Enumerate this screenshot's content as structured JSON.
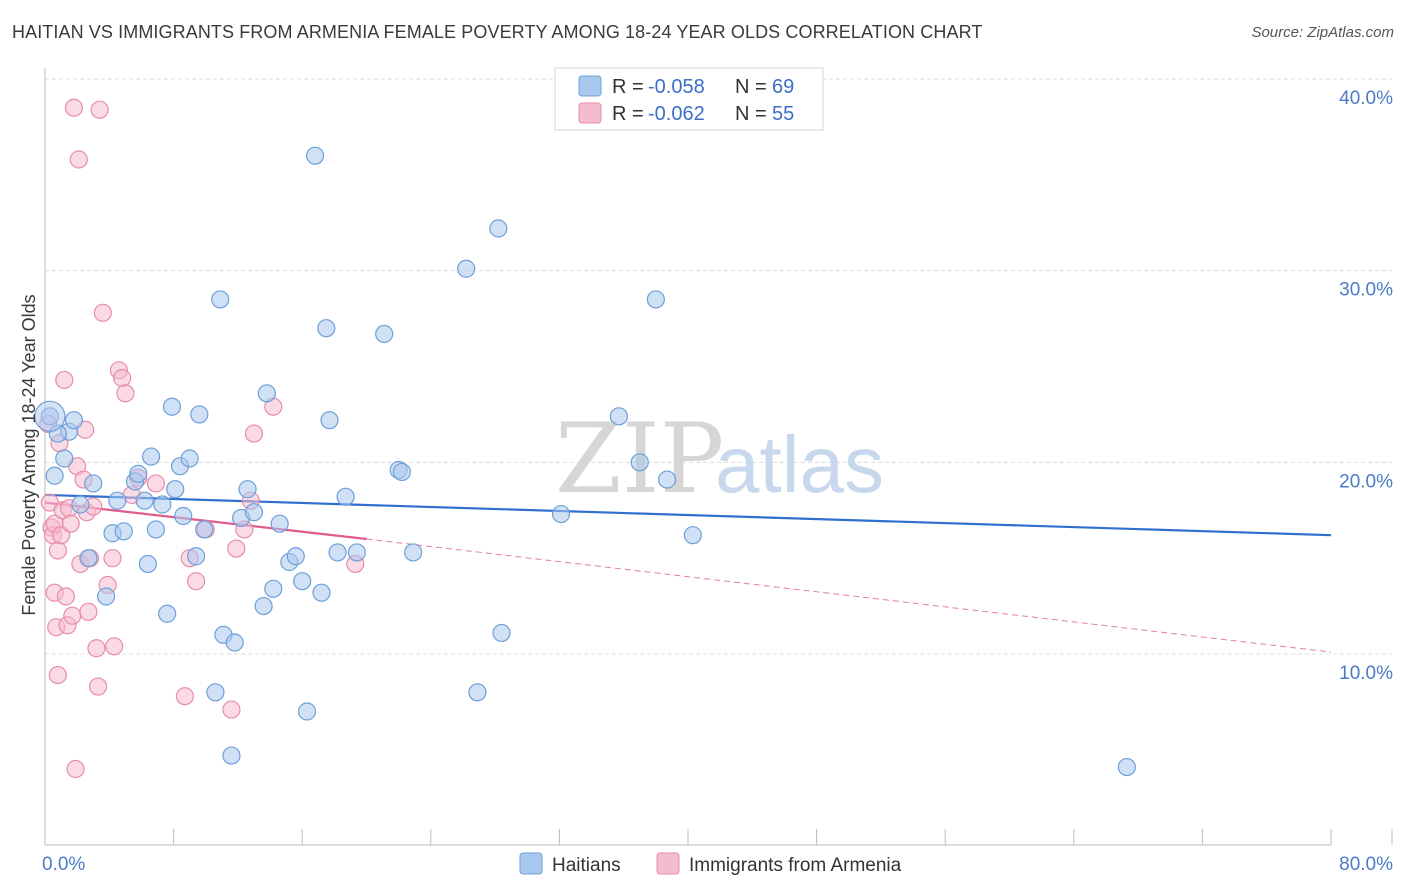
{
  "title": "HAITIAN VS IMMIGRANTS FROM ARMENIA FEMALE POVERTY AMONG 18-24 YEAR OLDS CORRELATION CHART",
  "source": "Source: ZipAtlas.com",
  "watermark": {
    "zip": "ZIP",
    "atlas": "atlas"
  },
  "colors": {
    "blue_fill": "#a9c8ee",
    "blue_stroke": "#6e9fd8",
    "blue_line": "#2e6fcf",
    "pink_fill": "#f5bcd0",
    "pink_stroke": "#e88cab",
    "pink_line": "#e05c8c",
    "grid": "#dcdcdc",
    "tick_label": "#4a7cc4"
  },
  "legend": {
    "rows": [
      {
        "r_label": "R = ",
        "r_value": "-0.058",
        "n_label": "N = ",
        "n_value": "69",
        "series": "blue"
      },
      {
        "r_label": "R = ",
        "r_value": "-0.062",
        "n_label": "N = ",
        "n_value": "55",
        "series": "pink"
      }
    ]
  },
  "bottom_legend": [
    {
      "label": "Haitians",
      "series": "blue"
    },
    {
      "label": "Immigrants from Armenia",
      "series": "pink"
    }
  ],
  "chart_data": {
    "type": "scatter",
    "title": "HAITIAN VS IMMIGRANTS FROM ARMENIA FEMALE POVERTY AMONG 18-24 YEAR OLDS CORRELATION CHART",
    "xlabel": "",
    "ylabel": "Female Poverty Among 18-24 Year Olds",
    "xlim": [
      0,
      80
    ],
    "ylim": [
      0,
      42
    ],
    "x_tick_labels": [
      {
        "value": 0,
        "label": "0.0%"
      },
      {
        "value": 80,
        "label": "80.0%"
      }
    ],
    "y_tick_labels": [
      {
        "value": 10,
        "label": "10.0%"
      },
      {
        "value": 20,
        "label": "20.0%"
      },
      {
        "value": 30,
        "label": "30.0%"
      },
      {
        "value": 40,
        "label": "40.0%"
      }
    ],
    "x_minor_ticks": [
      8,
      16,
      24,
      32,
      40,
      48,
      56,
      64,
      72,
      80
    ],
    "series": [
      {
        "name": "Haitians",
        "color": "blue",
        "trend": {
          "x": [
            0,
            80
          ],
          "y": [
            18.3,
            16.2
          ],
          "style": "solid"
        },
        "points": [
          [
            0.3,
            22.4
          ],
          [
            0.6,
            19.3
          ],
          [
            1.2,
            20.2
          ],
          [
            1.5,
            21.6
          ],
          [
            1.8,
            22.2
          ],
          [
            0.8,
            21.5
          ],
          [
            2.2,
            17.8
          ],
          [
            2.7,
            15.0
          ],
          [
            3.0,
            18.9
          ],
          [
            3.8,
            13.0
          ],
          [
            4.2,
            16.3
          ],
          [
            4.5,
            18.0
          ],
          [
            4.9,
            16.4
          ],
          [
            5.6,
            19.0
          ],
          [
            5.8,
            19.4
          ],
          [
            6.2,
            18.0
          ],
          [
            6.4,
            14.7
          ],
          [
            6.6,
            20.3
          ],
          [
            6.9,
            16.5
          ],
          [
            7.3,
            17.8
          ],
          [
            7.6,
            12.1
          ],
          [
            7.9,
            22.9
          ],
          [
            8.1,
            18.6
          ],
          [
            8.4,
            19.8
          ],
          [
            8.6,
            17.2
          ],
          [
            9.0,
            20.2
          ],
          [
            9.4,
            15.1
          ],
          [
            9.6,
            22.5
          ],
          [
            9.9,
            16.5
          ],
          [
            10.6,
            8.0
          ],
          [
            10.9,
            28.5
          ],
          [
            11.1,
            11.0
          ],
          [
            11.6,
            4.7
          ],
          [
            11.8,
            10.6
          ],
          [
            12.2,
            17.1
          ],
          [
            12.6,
            18.6
          ],
          [
            13.0,
            17.4
          ],
          [
            13.6,
            12.5
          ],
          [
            13.8,
            23.6
          ],
          [
            14.2,
            13.4
          ],
          [
            14.6,
            16.8
          ],
          [
            15.2,
            14.8
          ],
          [
            15.6,
            15.1
          ],
          [
            16.0,
            13.8
          ],
          [
            16.3,
            7.0
          ],
          [
            16.8,
            36.0
          ],
          [
            17.2,
            13.2
          ],
          [
            17.5,
            27.0
          ],
          [
            17.7,
            22.2
          ],
          [
            18.2,
            15.3
          ],
          [
            18.7,
            18.2
          ],
          [
            19.4,
            15.3
          ],
          [
            21.1,
            26.7
          ],
          [
            22.0,
            19.6
          ],
          [
            22.2,
            19.5
          ],
          [
            22.9,
            15.3
          ],
          [
            26.2,
            30.1
          ],
          [
            26.9,
            8.0
          ],
          [
            28.2,
            32.2
          ],
          [
            28.4,
            11.1
          ],
          [
            32.1,
            17.3
          ],
          [
            35.7,
            22.4
          ],
          [
            37.0,
            20.0
          ],
          [
            38.0,
            28.5
          ],
          [
            38.7,
            19.1
          ],
          [
            40.3,
            16.2
          ],
          [
            67.3,
            4.1
          ]
        ]
      },
      {
        "name": "Immigrants from Armenia",
        "color": "pink",
        "trend": {
          "x": [
            0,
            20
          ],
          "y": [
            17.9,
            16.0
          ],
          "style": "solid",
          "extended": {
            "x": [
              20,
              80
            ],
            "y": [
              16.0,
              10.1
            ],
            "style": "dashed"
          }
        },
        "points": [
          [
            0.2,
            22.0
          ],
          [
            0.3,
            17.9
          ],
          [
            0.4,
            16.6
          ],
          [
            0.5,
            16.2
          ],
          [
            0.6,
            16.8
          ],
          [
            0.6,
            13.2
          ],
          [
            0.7,
            11.4
          ],
          [
            0.8,
            8.9
          ],
          [
            0.8,
            15.4
          ],
          [
            0.9,
            21.0
          ],
          [
            1.0,
            16.2
          ],
          [
            1.1,
            17.5
          ],
          [
            1.2,
            24.3
          ],
          [
            1.3,
            13.0
          ],
          [
            1.4,
            11.5
          ],
          [
            1.5,
            17.6
          ],
          [
            1.6,
            16.8
          ],
          [
            1.7,
            12.0
          ],
          [
            1.8,
            38.5
          ],
          [
            1.9,
            4.0
          ],
          [
            2.0,
            19.8
          ],
          [
            2.1,
            35.8
          ],
          [
            2.2,
            14.7
          ],
          [
            2.4,
            19.1
          ],
          [
            2.5,
            21.7
          ],
          [
            2.6,
            17.4
          ],
          [
            2.7,
            12.2
          ],
          [
            2.8,
            15.0
          ],
          [
            3.0,
            17.7
          ],
          [
            3.2,
            10.3
          ],
          [
            3.3,
            8.3
          ],
          [
            3.4,
            38.4
          ],
          [
            3.6,
            27.8
          ],
          [
            3.9,
            13.6
          ],
          [
            4.2,
            15.0
          ],
          [
            4.3,
            10.4
          ],
          [
            4.6,
            24.8
          ],
          [
            4.8,
            24.4
          ],
          [
            5.0,
            23.6
          ],
          [
            5.4,
            18.3
          ],
          [
            5.8,
            19.2
          ],
          [
            6.9,
            18.9
          ],
          [
            8.7,
            7.8
          ],
          [
            9.0,
            15.0
          ],
          [
            9.4,
            13.8
          ],
          [
            10.0,
            16.5
          ],
          [
            11.6,
            7.1
          ],
          [
            11.9,
            15.5
          ],
          [
            12.4,
            16.5
          ],
          [
            12.8,
            18.0
          ],
          [
            13.0,
            21.5
          ],
          [
            14.2,
            22.9
          ],
          [
            19.3,
            14.7
          ]
        ]
      }
    ]
  }
}
